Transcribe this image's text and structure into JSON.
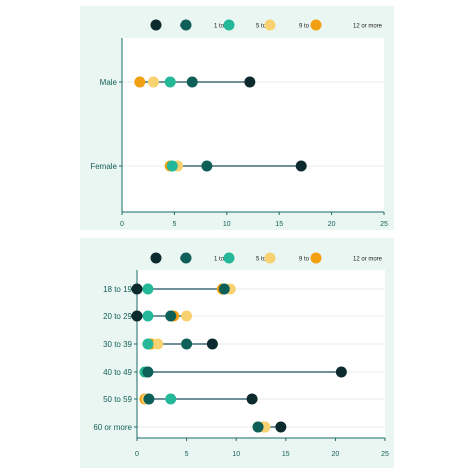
{
  "chart_data": [
    {
      "type": "dot-range",
      "title": "",
      "xlabel": "",
      "ylabel": "",
      "xlim": [
        0,
        25
      ],
      "xticks": [
        0,
        5,
        10,
        15,
        20,
        25
      ],
      "grid": true,
      "legend_position": "top",
      "categories": [
        "Male",
        "Female"
      ],
      "series": [
        {
          "name": "0",
          "color": "#0d2a2f",
          "values": [
            12.2,
            17.1
          ]
        },
        {
          "name": "1 to 4",
          "color": "#0f5f59",
          "values": [
            6.7,
            8.1
          ]
        },
        {
          "name": "5 to 8",
          "color": "#25b898",
          "values": [
            4.6,
            4.8
          ]
        },
        {
          "name": "9 to 11",
          "color": "#f8d271",
          "values": [
            3.0,
            5.3
          ]
        },
        {
          "name": "12 or more",
          "color": "#f2a011",
          "values": [
            1.7,
            4.6
          ]
        }
      ]
    },
    {
      "type": "dot-range",
      "title": "",
      "xlabel": "",
      "ylabel": "",
      "xlim": [
        0,
        25
      ],
      "xticks": [
        0,
        5,
        10,
        15,
        20,
        25
      ],
      "grid": true,
      "legend_position": "top",
      "categories": [
        "18 to 19",
        "20 to 29",
        "30 to 39",
        "40 to 49",
        "50 to 59",
        "60 or more"
      ],
      "series": [
        {
          "name": "0",
          "color": "#0d2a2f",
          "values": [
            0.0,
            0.0,
            7.6,
            20.6,
            11.6,
            14.5
          ]
        },
        {
          "name": "1 to 4",
          "color": "#0f5f59",
          "values": [
            8.8,
            3.4,
            5.0,
            1.1,
            1.2,
            12.2
          ]
        },
        {
          "name": "5 to 8",
          "color": "#25b898",
          "values": [
            1.1,
            1.1,
            1.1,
            0.8,
            3.4,
            12.2
          ]
        },
        {
          "name": "9 to 11",
          "color": "#f8d271",
          "values": [
            9.4,
            5.0,
            2.1,
            0.8,
            1.0,
            12.9
          ]
        },
        {
          "name": "12 or more",
          "color": "#f2a011",
          "values": [
            8.6,
            3.7,
            1.4,
            0.8,
            0.8,
            12.8
          ]
        }
      ]
    }
  ]
}
